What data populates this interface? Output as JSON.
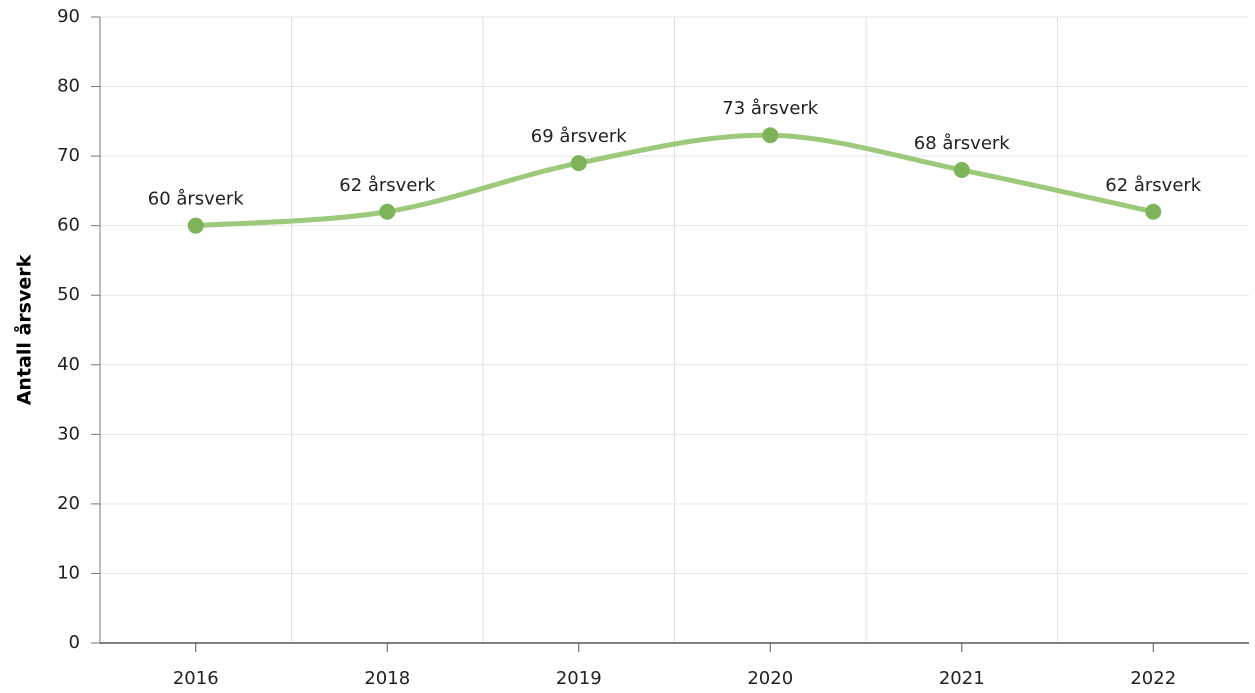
{
  "chart_data": {
    "type": "line",
    "ylabel": "Antall årsverk",
    "categories": [
      "2016",
      "2018",
      "2019",
      "2020",
      "2021",
      "2022"
    ],
    "values": [
      60,
      62,
      69,
      73,
      68,
      62
    ],
    "value_labels": [
      "60 årsverk",
      "62 årsverk",
      "69 årsverk",
      "73 årsverk",
      "68 årsverk",
      "62 årsverk"
    ],
    "color": "#9dc97b",
    "marker_color": "#7fb35a",
    "ylim": [
      0,
      90
    ],
    "yticks": [
      0,
      10,
      20,
      30,
      40,
      50,
      60,
      70,
      80,
      90
    ],
    "grid": true
  }
}
